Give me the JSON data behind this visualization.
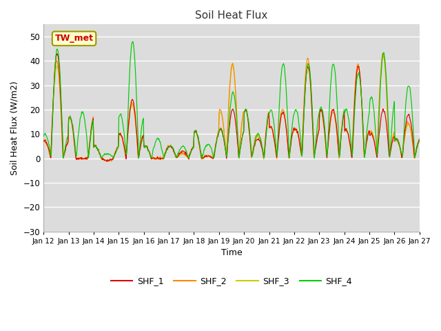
{
  "title": "Soil Heat Flux",
  "xlabel": "Time",
  "ylabel": "Soil Heat Flux (W/m2)",
  "ylim": [
    -30,
    55
  ],
  "yticks": [
    -30,
    -20,
    -10,
    0,
    10,
    20,
    30,
    40,
    50
  ],
  "annotation_text": "TW_met",
  "annotation_color": "#cc0000",
  "annotation_bg": "#ffffcc",
  "annotation_border": "#999900",
  "colors": {
    "SHF_1": "#dd0000",
    "SHF_2": "#ff8800",
    "SHF_3": "#cccc00",
    "SHF_4": "#00cc00"
  },
  "bg_color": "#dcdcdc",
  "grid_color": "#ffffff",
  "legend_entries": [
    "SHF_1",
    "SHF_2",
    "SHF_3",
    "SHF_4"
  ]
}
